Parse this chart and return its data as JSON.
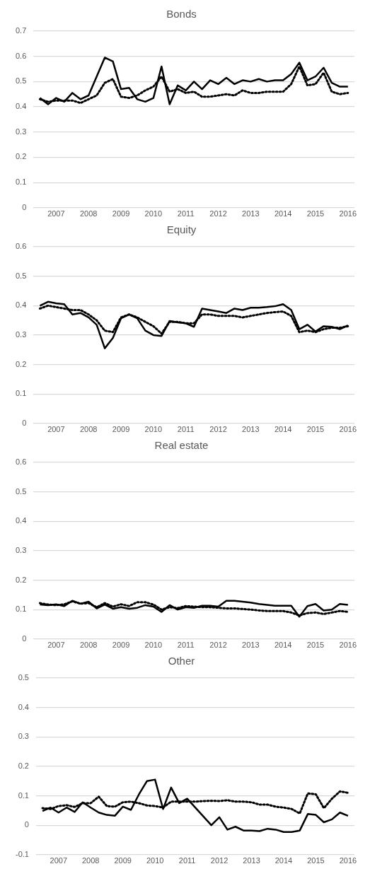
{
  "chart_data": [
    {
      "type": "line",
      "title": "Bonds",
      "x": [
        2006.5,
        2006.75,
        2007,
        2007.25,
        2007.5,
        2007.75,
        2008,
        2008.25,
        2008.5,
        2008.75,
        2009,
        2009.25,
        2009.5,
        2009.75,
        2010,
        2010.25,
        2010.5,
        2010.75,
        2011,
        2011.25,
        2011.5,
        2011.75,
        2012,
        2012.25,
        2012.5,
        2012.75,
        2013,
        2013.25,
        2013.5,
        2013.75,
        2014,
        2014.25,
        2014.5,
        2014.75,
        2015,
        2015.25,
        2015.5,
        2015.75,
        2016
      ],
      "xlim": [
        2006.3,
        2016.2
      ],
      "xticks": [
        2007,
        2008,
        2009,
        2010,
        2011,
        2012,
        2013,
        2014,
        2015,
        2016
      ],
      "ylim": [
        0,
        0.7
      ],
      "yticks": [
        0,
        0.1,
        0.2,
        0.3,
        0.4,
        0.5,
        0.6,
        0.7
      ],
      "grid": "y",
      "legend": false,
      "series": [
        {
          "color": "#000000",
          "line_style": "solid",
          "values": [
            0.435,
            0.41,
            0.435,
            0.42,
            0.455,
            0.43,
            0.445,
            0.52,
            0.595,
            0.58,
            0.47,
            0.475,
            0.43,
            0.42,
            0.435,
            0.56,
            0.41,
            0.485,
            0.465,
            0.5,
            0.47,
            0.505,
            0.49,
            0.515,
            0.49,
            0.505,
            0.5,
            0.51,
            0.5,
            0.505,
            0.505,
            0.53,
            0.575,
            0.505,
            0.52,
            0.555,
            0.495,
            0.48,
            0.48
          ]
        },
        {
          "color": "#000000",
          "line_style": "dotted",
          "values": [
            0.43,
            0.42,
            0.425,
            0.425,
            0.425,
            0.415,
            0.43,
            0.445,
            0.495,
            0.51,
            0.44,
            0.435,
            0.445,
            0.465,
            0.48,
            0.52,
            0.46,
            0.47,
            0.455,
            0.46,
            0.44,
            0.44,
            0.445,
            0.45,
            0.445,
            0.465,
            0.455,
            0.455,
            0.46,
            0.46,
            0.46,
            0.49,
            0.56,
            0.485,
            0.49,
            0.535,
            0.46,
            0.45,
            0.455
          ]
        }
      ]
    },
    {
      "type": "line",
      "title": "Equity",
      "x": [
        2006.5,
        2006.75,
        2007,
        2007.25,
        2007.5,
        2007.75,
        2008,
        2008.25,
        2008.5,
        2008.75,
        2009,
        2009.25,
        2009.5,
        2009.75,
        2010,
        2010.25,
        2010.5,
        2010.75,
        2011,
        2011.25,
        2011.5,
        2011.75,
        2012,
        2012.25,
        2012.5,
        2012.75,
        2013,
        2013.25,
        2013.5,
        2013.75,
        2014,
        2014.25,
        2014.5,
        2014.75,
        2015,
        2015.25,
        2015.5,
        2015.75,
        2016
      ],
      "xlim": [
        2006.3,
        2016.2
      ],
      "xticks": [
        2007,
        2008,
        2009,
        2010,
        2011,
        2012,
        2013,
        2014,
        2015,
        2016
      ],
      "ylim": [
        0,
        0.6
      ],
      "yticks": [
        0,
        0.1,
        0.2,
        0.3,
        0.4,
        0.5,
        0.6
      ],
      "grid": "y",
      "legend": false,
      "series": [
        {
          "color": "#000000",
          "line_style": "solid",
          "values": [
            0.4,
            0.413,
            0.408,
            0.405,
            0.37,
            0.375,
            0.36,
            0.335,
            0.255,
            0.29,
            0.357,
            0.37,
            0.357,
            0.315,
            0.3,
            0.297,
            0.348,
            0.343,
            0.34,
            0.328,
            0.39,
            0.385,
            0.38,
            0.375,
            0.39,
            0.385,
            0.393,
            0.393,
            0.395,
            0.398,
            0.405,
            0.385,
            0.32,
            0.335,
            0.312,
            0.33,
            0.328,
            0.32,
            0.333
          ]
        },
        {
          "color": "#000000",
          "line_style": "dotted",
          "values": [
            0.39,
            0.4,
            0.395,
            0.39,
            0.385,
            0.385,
            0.37,
            0.35,
            0.315,
            0.31,
            0.36,
            0.37,
            0.36,
            0.345,
            0.33,
            0.305,
            0.345,
            0.345,
            0.34,
            0.34,
            0.37,
            0.37,
            0.365,
            0.365,
            0.365,
            0.36,
            0.365,
            0.37,
            0.375,
            0.378,
            0.38,
            0.365,
            0.31,
            0.315,
            0.31,
            0.32,
            0.325,
            0.325,
            0.33
          ]
        }
      ]
    },
    {
      "type": "line",
      "title": "Real estate",
      "x": [
        2006.5,
        2006.75,
        2007,
        2007.25,
        2007.5,
        2007.75,
        2008,
        2008.25,
        2008.5,
        2008.75,
        2009,
        2009.25,
        2009.5,
        2009.75,
        2010,
        2010.25,
        2010.5,
        2010.75,
        2011,
        2011.25,
        2011.5,
        2011.75,
        2012,
        2012.25,
        2012.5,
        2012.75,
        2013,
        2013.25,
        2013.5,
        2013.75,
        2014,
        2014.25,
        2014.5,
        2014.75,
        2015,
        2015.25,
        2015.5,
        2015.75,
        2016
      ],
      "xlim": [
        2006.3,
        2016.2
      ],
      "xticks": [
        2007,
        2008,
        2009,
        2010,
        2011,
        2012,
        2013,
        2014,
        2015,
        2016
      ],
      "ylim": [
        0,
        0.6
      ],
      "yticks": [
        0,
        0.1,
        0.2,
        0.3,
        0.4,
        0.5,
        0.6
      ],
      "grid": "y",
      "legend": false,
      "series": [
        {
          "color": "#000000",
          "line_style": "solid",
          "values": [
            0.117,
            0.115,
            0.118,
            0.112,
            0.13,
            0.12,
            0.127,
            0.104,
            0.117,
            0.103,
            0.108,
            0.103,
            0.106,
            0.115,
            0.11,
            0.092,
            0.115,
            0.1,
            0.108,
            0.106,
            0.113,
            0.113,
            0.11,
            0.13,
            0.13,
            0.127,
            0.124,
            0.119,
            0.116,
            0.113,
            0.113,
            0.113,
            0.076,
            0.112,
            0.119,
            0.097,
            0.1,
            0.119,
            0.116
          ]
        },
        {
          "color": "#000000",
          "line_style": "dotted",
          "values": [
            0.122,
            0.117,
            0.115,
            0.118,
            0.128,
            0.12,
            0.122,
            0.108,
            0.122,
            0.11,
            0.118,
            0.112,
            0.125,
            0.125,
            0.117,
            0.1,
            0.108,
            0.105,
            0.112,
            0.11,
            0.108,
            0.108,
            0.106,
            0.104,
            0.104,
            0.102,
            0.1,
            0.097,
            0.095,
            0.095,
            0.095,
            0.09,
            0.08,
            0.088,
            0.09,
            0.085,
            0.09,
            0.095,
            0.092
          ]
        }
      ]
    },
    {
      "type": "line",
      "title": "Other",
      "x": [
        2006.5,
        2006.75,
        2007,
        2007.25,
        2007.5,
        2007.75,
        2008,
        2008.25,
        2008.5,
        2008.75,
        2009,
        2009.25,
        2009.5,
        2009.75,
        2010,
        2010.25,
        2010.5,
        2010.75,
        2011,
        2011.25,
        2011.5,
        2011.75,
        2012,
        2012.25,
        2012.5,
        2012.75,
        2013,
        2013.25,
        2013.5,
        2013.75,
        2014,
        2014.25,
        2014.5,
        2014.75,
        2015,
        2015.25,
        2015.5,
        2015.75,
        2016
      ],
      "xlim": [
        2006.3,
        2016.2
      ],
      "xticks": [
        2007,
        2008,
        2009,
        2010,
        2011,
        2012,
        2013,
        2014,
        2015,
        2016
      ],
      "ylim": [
        -0.1,
        0.5
      ],
      "yticks": [
        -0.1,
        0,
        0.1,
        0.2,
        0.3,
        0.4,
        0.5
      ],
      "grid": "y",
      "legend": false,
      "series": [
        {
          "color": "#000000",
          "line_style": "solid",
          "values": [
            0.048,
            0.06,
            0.043,
            0.06,
            0.045,
            0.078,
            0.06,
            0.043,
            0.035,
            0.032,
            0.063,
            0.052,
            0.105,
            0.15,
            0.155,
            0.055,
            0.128,
            0.075,
            0.09,
            0.06,
            0.03,
            0.0,
            0.027,
            -0.015,
            -0.005,
            -0.018,
            -0.018,
            -0.02,
            -0.012,
            -0.015,
            -0.023,
            -0.023,
            -0.018,
            0.038,
            0.035,
            0.01,
            0.02,
            0.043,
            0.032
          ]
        },
        {
          "color": "#000000",
          "line_style": "dotted",
          "values": [
            0.058,
            0.055,
            0.065,
            0.068,
            0.062,
            0.075,
            0.075,
            0.097,
            0.065,
            0.063,
            0.078,
            0.08,
            0.075,
            0.067,
            0.065,
            0.06,
            0.08,
            0.08,
            0.08,
            0.08,
            0.082,
            0.083,
            0.082,
            0.085,
            0.08,
            0.08,
            0.078,
            0.07,
            0.07,
            0.063,
            0.06,
            0.055,
            0.04,
            0.108,
            0.105,
            0.058,
            0.09,
            0.115,
            0.11
          ]
        }
      ]
    }
  ]
}
